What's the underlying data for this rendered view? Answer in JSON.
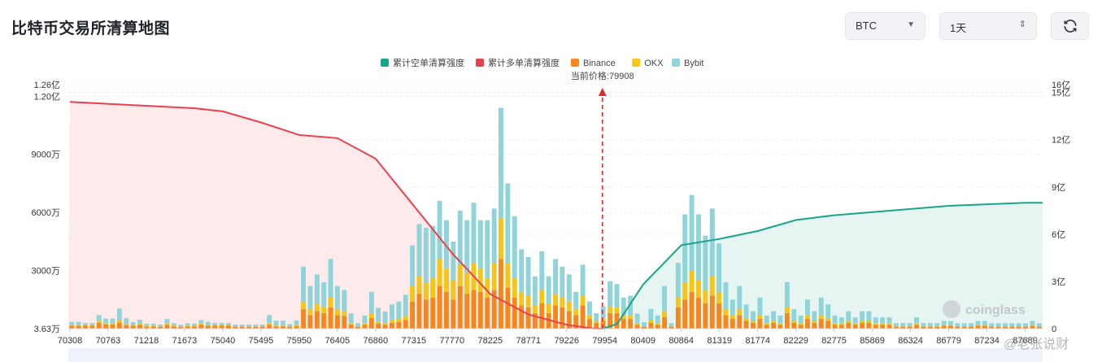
{
  "header": {
    "title": "比特币交易所清算地图",
    "symbol_select": "BTC",
    "period_select": "1天",
    "refresh_icon": "refresh-icon"
  },
  "watermark": {
    "brand": "coinglass",
    "author": "@老张说财"
  },
  "chart_data": {
    "type": "bar",
    "current_price_label": "当前价格:79908",
    "current_price": 79908,
    "legend": [
      {
        "name": "累计空单清算强度",
        "color": "#1aa58a"
      },
      {
        "name": "累计多单清算强度",
        "color": "#e8414f"
      },
      {
        "name": "Binance",
        "color": "#f7861c"
      },
      {
        "name": "OKX",
        "color": "#f5c518"
      },
      {
        "name": "Bybit",
        "color": "#8fd4d9"
      }
    ],
    "left_axis": {
      "ticks": [
        {
          "label": "3.63万",
          "value": 0
        },
        {
          "label": "3000万",
          "value": 3000
        },
        {
          "label": "6000万",
          "value": 6000
        },
        {
          "label": "9000万",
          "value": 9000
        },
        {
          "label": "1.20亿",
          "value": 12000
        },
        {
          "label": "1.26亿",
          "value": 12600
        }
      ],
      "range": [
        0,
        12600
      ]
    },
    "right_axis": {
      "ticks": [
        {
          "label": "0",
          "value": 0
        },
        {
          "label": "3亿",
          "value": 3
        },
        {
          "label": "6亿",
          "value": 6
        },
        {
          "label": "9亿",
          "value": 9
        },
        {
          "label": "12亿",
          "value": 12
        },
        {
          "label": "15亿",
          "value": 15
        },
        {
          "label": "16亿",
          "value": 15.5
        }
      ],
      "range": [
        0,
        15.5
      ]
    },
    "x_ticks": [
      "70308",
      "70763",
      "71218",
      "71673",
      "75040",
      "75495",
      "75950",
      "76405",
      "76860",
      "77315",
      "77770",
      "78225",
      "78771",
      "79226",
      "79954",
      "80409",
      "80864",
      "81319",
      "81774",
      "82229",
      "82775",
      "85869",
      "86324",
      "86779",
      "87234",
      "87689"
    ],
    "grid": true,
    "series": [
      {
        "name": "Binance",
        "values": [
          150,
          150,
          150,
          150,
          300,
          220,
          220,
          320,
          180,
          150,
          200,
          110,
          120,
          100,
          200,
          120,
          100,
          120,
          120,
          200,
          150,
          150,
          150,
          150,
          100,
          100,
          100,
          100,
          100,
          200,
          120,
          120,
          100,
          130,
          1000,
          700,
          900,
          800,
          1100,
          700,
          650,
          200,
          100,
          200,
          550,
          250,
          200,
          300,
          350,
          450,
          1400,
          1800,
          1500,
          1600,
          2200,
          1900,
          1500,
          2200,
          1800,
          2000,
          1900,
          1600,
          2000,
          3600,
          2100,
          1600,
          1200,
          1100,
          800,
          1300,
          800,
          1200,
          1100,
          900,
          700,
          1200,
          500,
          300,
          400,
          800,
          800,
          500,
          500,
          200,
          100,
          300,
          200,
          600,
          100,
          1100,
          1500,
          1900,
          1600,
          1300,
          1700,
          1300,
          700,
          500,
          700,
          400,
          300,
          500,
          200,
          300,
          200,
          800,
          300,
          200,
          500,
          300,
          500,
          400,
          200,
          200,
          300,
          200,
          300,
          300,
          200,
          200,
          200,
          100,
          100,
          100,
          200,
          100,
          100,
          100,
          150,
          150,
          100,
          100,
          100,
          150,
          150,
          100,
          100,
          100,
          100,
          100,
          100,
          150,
          100
        ]
      },
      {
        "name": "OKX",
        "values": [
          50,
          50,
          40,
          40,
          100,
          70,
          70,
          120,
          60,
          40,
          60,
          40,
          40,
          30,
          60,
          40,
          30,
          40,
          40,
          60,
          50,
          40,
          40,
          40,
          30,
          30,
          30,
          30,
          30,
          80,
          40,
          40,
          30,
          40,
          400,
          300,
          400,
          300,
          500,
          300,
          250,
          90,
          30,
          80,
          250,
          120,
          80,
          150,
          150,
          200,
          800,
          900,
          900,
          1000,
          1400,
          1200,
          1000,
          1100,
          1100,
          1400,
          1200,
          1000,
          1400,
          2100,
          1300,
          1000,
          700,
          600,
          400,
          700,
          500,
          600,
          500,
          500,
          300,
          500,
          200,
          100,
          150,
          350,
          300,
          200,
          200,
          80,
          30,
          120,
          80,
          300,
          30,
          500,
          900,
          1100,
          900,
          700,
          1000,
          600,
          300,
          200,
          300,
          150,
          100,
          200,
          80,
          100,
          80,
          300,
          100,
          80,
          200,
          100,
          200,
          150,
          80,
          80,
          100,
          80,
          100,
          100,
          80,
          80,
          80,
          40,
          40,
          40,
          80,
          40,
          40,
          40,
          50,
          50,
          30,
          30,
          30,
          50,
          50,
          30,
          30,
          30,
          30,
          30,
          30,
          50,
          30
        ]
      },
      {
        "name": "Bybit",
        "values": [
          150,
          150,
          100,
          100,
          300,
          230,
          230,
          600,
          300,
          150,
          200,
          100,
          100,
          80,
          240,
          120,
          80,
          120,
          100,
          180,
          150,
          100,
          100,
          100,
          80,
          80,
          80,
          80,
          80,
          420,
          250,
          250,
          100,
          250,
          1800,
          1200,
          1500,
          1300,
          2000,
          1200,
          1100,
          500,
          150,
          400,
          1100,
          700,
          600,
          800,
          900,
          1100,
          2100,
          2700,
          2800,
          2700,
          3000,
          2500,
          2000,
          2800,
          2700,
          3100,
          2500,
          3000,
          2800,
          5700,
          4100,
          3200,
          2200,
          2000,
          1500,
          2000,
          1400,
          1800,
          1600,
          1400,
          900,
          1600,
          700,
          400,
          600,
          1300,
          1200,
          900,
          1000,
          500,
          200,
          600,
          400,
          1300,
          150,
          1800,
          3500,
          3900,
          3400,
          2800,
          3500,
          2500,
          1400,
          800,
          1200,
          700,
          500,
          900,
          400,
          500,
          400,
          1300,
          600,
          400,
          800,
          500,
          900,
          700,
          400,
          300,
          500,
          300,
          500,
          500,
          300,
          300,
          300,
          150,
          150,
          150,
          300,
          150,
          150,
          150,
          200,
          200,
          150,
          150,
          150,
          200,
          200,
          150,
          150,
          150,
          150,
          150,
          150,
          200,
          150
        ]
      },
      {
        "name": "累计多单清算强度",
        "x": [
          70308,
          72500,
          75040,
          75495,
          75950,
          76405,
          76860,
          77315,
          77770,
          78225,
          78771,
          79226,
          79700,
          79908
        ],
        "values": [
          14.4,
          14.0,
          13.8,
          13.1,
          12.3,
          12.1,
          10.8,
          7.8,
          4.8,
          2.2,
          0.9,
          0.25,
          0.02,
          0.0
        ]
      },
      {
        "name": "累计空单清算强度",
        "x": [
          79908,
          80100,
          80409,
          80864,
          81319,
          81774,
          82229,
          82775,
          85869,
          86324,
          86779,
          87689
        ],
        "values": [
          0.0,
          0.3,
          2.8,
          5.3,
          5.7,
          6.2,
          6.9,
          7.2,
          7.4,
          7.6,
          7.8,
          8.0
        ]
      }
    ]
  }
}
